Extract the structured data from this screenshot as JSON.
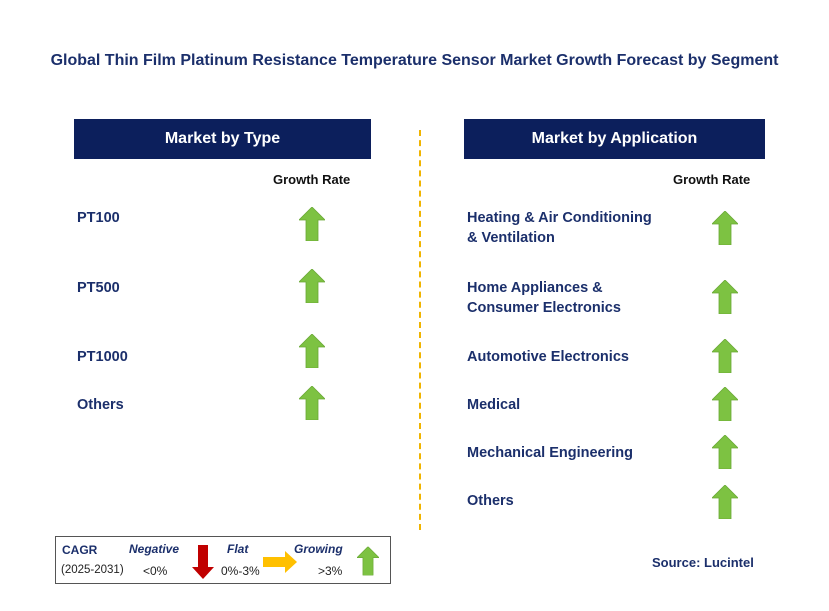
{
  "title": "Global Thin Film Platinum Resistance Temperature Sensor Market Growth Forecast by Segment",
  "left_panel": {
    "header": "Market by Type",
    "growth_label": "Growth Rate",
    "items": [
      {
        "label": "PT100",
        "trend": "growing"
      },
      {
        "label": "PT500",
        "trend": "growing"
      },
      {
        "label": "PT1000",
        "trend": "growing"
      },
      {
        "label": "Others",
        "trend": "growing"
      }
    ]
  },
  "right_panel": {
    "header": "Market by Application",
    "growth_label": "Growth Rate",
    "items": [
      {
        "label_line1": "Heating & Air Conditioning",
        "label_line2": "& Ventilation",
        "trend": "growing"
      },
      {
        "label_line1": "Home Appliances &",
        "label_line2": "Consumer Electronics",
        "trend": "growing"
      },
      {
        "label_line1": "Automotive Electronics",
        "label_line2": "",
        "trend": "growing"
      },
      {
        "label_line1": "Medical",
        "label_line2": "",
        "trend": "growing"
      },
      {
        "label_line1": "Mechanical Engineering",
        "label_line2": "",
        "trend": "growing"
      },
      {
        "label_line1": "Others",
        "label_line2": "",
        "trend": "growing"
      }
    ]
  },
  "legend": {
    "cagr_label": "CAGR",
    "period": "(2025-2031)",
    "negative_label": "Negative",
    "negative_range": "<0%",
    "flat_label": "Flat",
    "flat_range": "0%-3%",
    "growing_label": "Growing",
    "growing_range": ">3%"
  },
  "source": "Source: Lucintel",
  "colors": {
    "header_bg": "#0c1f5c",
    "up_arrow": "#7dc242",
    "down_arrow": "#c00000",
    "flat_arrow": "#ffc000",
    "divider": "#f0b400"
  }
}
